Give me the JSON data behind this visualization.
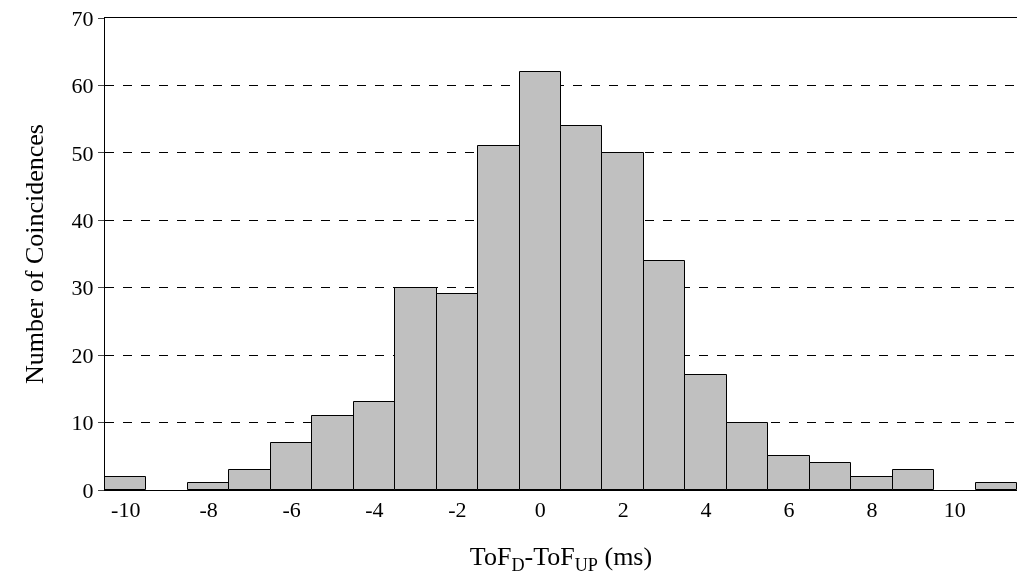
{
  "chart_data": {
    "type": "histogram",
    "xlabel": "ToF$_{D}$-ToF$_{UP}$ (ms)",
    "ylabel": "Number of Coincidences",
    "bins": [
      -10.5,
      -9.5,
      -8.5,
      -7.5,
      -6.5,
      -5.5,
      -4.5,
      -3.5,
      -2.5,
      -1.5,
      -0.5,
      0.5,
      1.5,
      2.5,
      3.5,
      4.5,
      5.5,
      6.5,
      7.5,
      8.5,
      9.5,
      10.5,
      11.5
    ],
    "values": [
      2,
      0,
      1,
      3,
      7,
      11,
      13,
      30,
      29,
      51,
      62,
      54,
      50,
      34,
      17,
      10,
      5,
      4,
      2,
      3,
      0,
      1
    ],
    "color": "#c0c0c0",
    "xlim": [
      -10.5,
      11.5
    ],
    "xticks": [
      -10,
      -8,
      -6,
      -4,
      -2,
      0,
      2,
      4,
      6,
      8,
      10
    ],
    "ylim": [
      0,
      70
    ],
    "yticks": [
      0,
      10,
      20,
      30,
      40,
      50,
      60,
      70
    ],
    "grid": "y",
    "legend": false
  }
}
